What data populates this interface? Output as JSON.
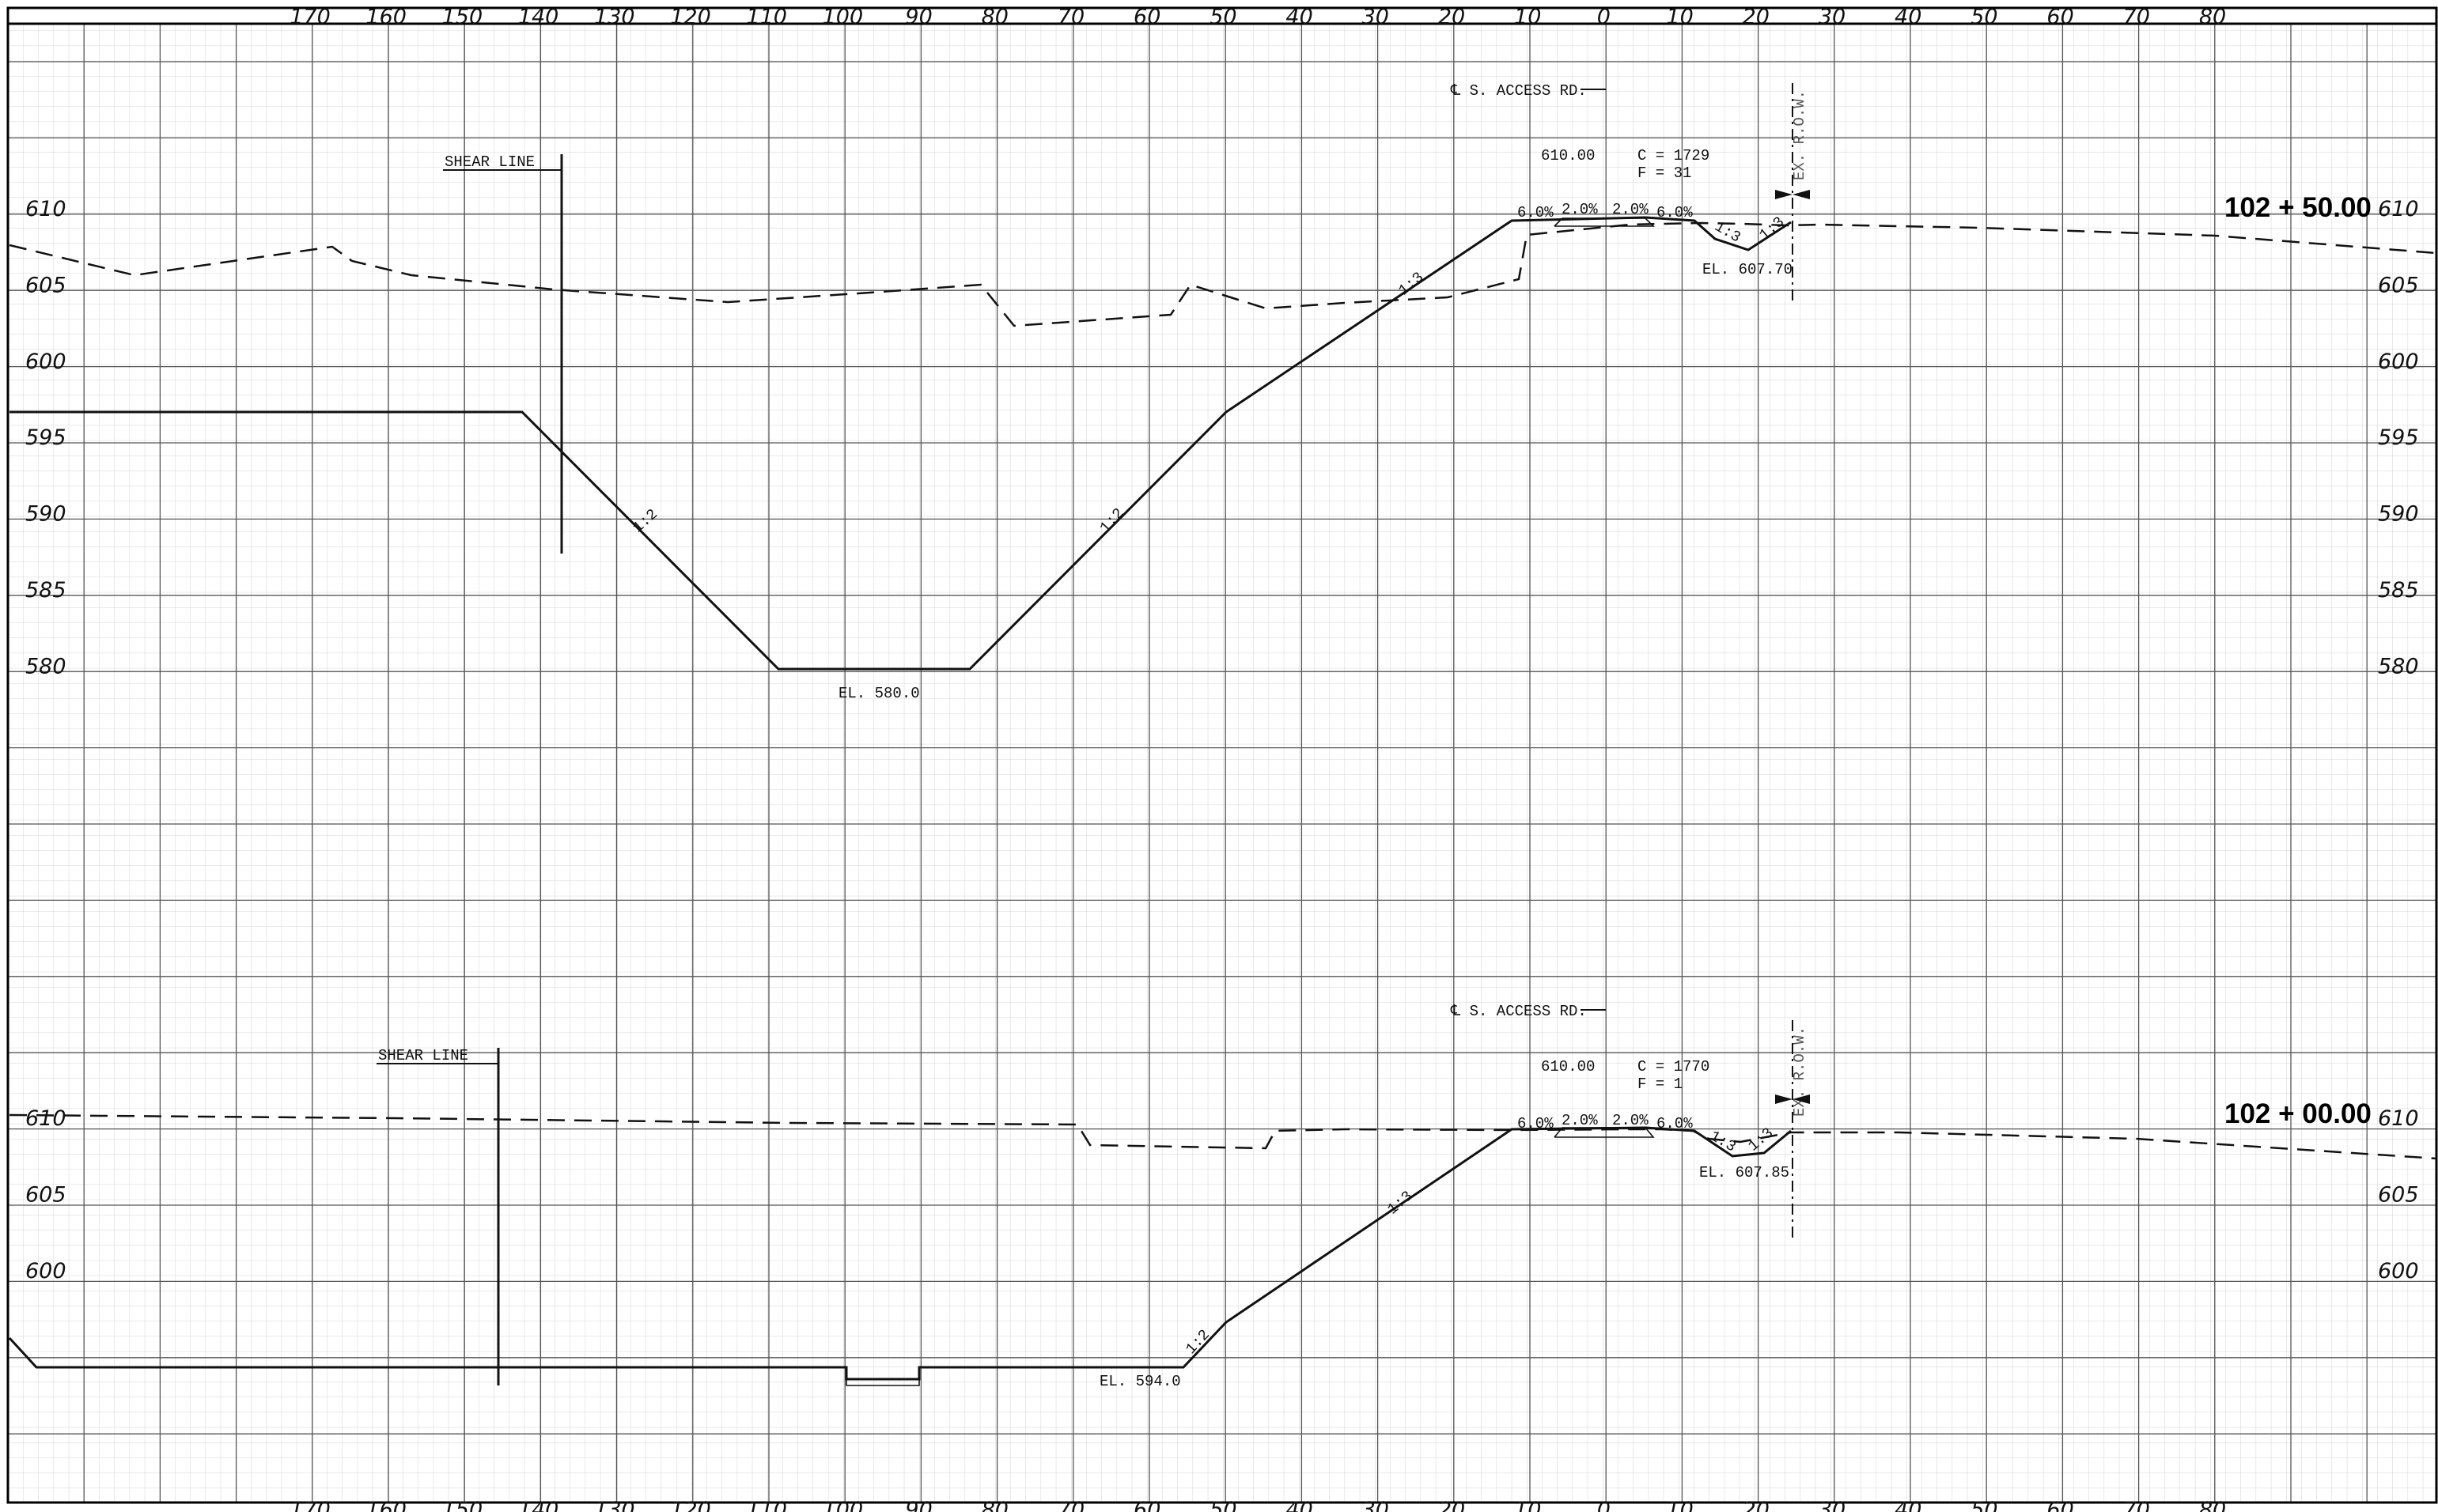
{
  "axis": {
    "offsets": [
      "170",
      "160",
      "150",
      "140",
      "130",
      "120",
      "110",
      "100",
      "90",
      "80",
      "70",
      "60",
      "50",
      "40",
      "30",
      "20",
      "10",
      "0",
      "10",
      "20",
      "30",
      "40",
      "50",
      "60",
      "70",
      "80"
    ]
  },
  "sections": [
    {
      "station": "102 + 50.00",
      "elevations": [
        "610",
        "605",
        "600",
        "595",
        "590",
        "585",
        "580"
      ],
      "shear_line": "SHEAR LINE",
      "centerline": "℄ S. ACCESS RD.",
      "crown_elev": "610.00",
      "cut": "C = 1729",
      "fill": "F = 31",
      "row_label": "EX. R.O.W.",
      "bottom_elev": "EL. 580.0",
      "ditch_elev": "EL. 607.70",
      "slopes": {
        "left": "1:2",
        "right": "1:2",
        "upper": "1:3",
        "ditch_a": "1:3",
        "ditch_b": "1:3"
      },
      "cross_slopes": [
        "6.0%",
        "2.0%",
        "2.0%",
        "6.0%"
      ]
    },
    {
      "station": "102 + 00.00",
      "elevations": [
        "610",
        "605",
        "600"
      ],
      "shear_line": "SHEAR LINE",
      "centerline": "℄ S. ACCESS RD.",
      "crown_elev": "610.00",
      "cut": "C = 1770",
      "fill": "F = 1",
      "row_label": "EX. R.O.W.",
      "bottom_elev": "EL. 594.0",
      "ditch_elev": "EL. 607.85",
      "slopes": {
        "lower": "1:2",
        "upper": "1:3",
        "ditch_a": "1:3",
        "ditch_b": "1:3"
      },
      "cross_slopes": [
        "6.0%",
        "2.0%",
        "2.0%",
        "6.0%"
      ]
    }
  ]
}
